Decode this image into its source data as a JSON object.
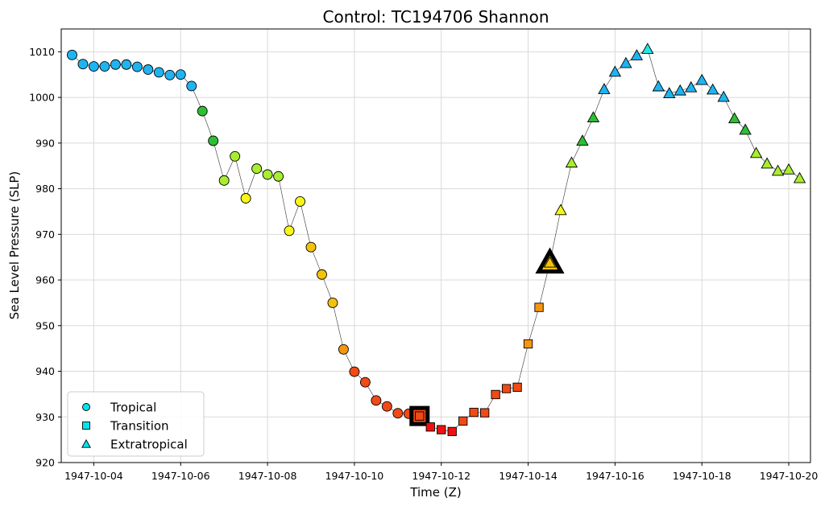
{
  "chart_data": {
    "type": "scatter",
    "title": "Control: TC194706 Shannon",
    "xlabel": "Time (Z)",
    "ylabel": "Sea Level Pressure (SLP)",
    "x_ticks": [
      "1947-10-04",
      "1947-10-06",
      "1947-10-08",
      "1947-10-10",
      "1947-10-12",
      "1947-10-14",
      "1947-10-16",
      "1947-10-18",
      "1947-10-20"
    ],
    "y_ticks": [
      920,
      930,
      940,
      950,
      960,
      970,
      980,
      990,
      1000,
      1010
    ],
    "xlim": [
      "1947-10-03 06:00",
      "1947-10-20 12:00"
    ],
    "ylim": [
      920,
      1015
    ],
    "grid": true,
    "legend_position": "lower-left",
    "legend": [
      {
        "label": "Tropical",
        "marker": "circle",
        "color": "#00e5ee"
      },
      {
        "label": "Transition",
        "marker": "square",
        "color": "#00e5ee"
      },
      {
        "label": "Extratropical",
        "marker": "triangle",
        "color": "#00e5ee"
      }
    ],
    "colors": {
      "TD": "#1fb4f0",
      "TS_low": "#2dbf33",
      "TS_mid": "#a8ee2e",
      "cat1": "#f7f716",
      "cat2": "#f2c30d",
      "cat3": "#f5960f",
      "cat4": "#f04a16",
      "cat5": "#f01010",
      "weak_ext": "#22e6e6"
    },
    "series": [
      {
        "x": "1947-10-03 12:00",
        "y": 1009.3,
        "phase": "tropical",
        "color": "#1fb4f0"
      },
      {
        "x": "1947-10-03 18:00",
        "y": 1007.3,
        "phase": "tropical",
        "color": "#1fb4f0"
      },
      {
        "x": "1947-10-04 00:00",
        "y": 1006.8,
        "phase": "tropical",
        "color": "#1fb4f0"
      },
      {
        "x": "1947-10-04 06:00",
        "y": 1006.8,
        "phase": "tropical",
        "color": "#1fb4f0"
      },
      {
        "x": "1947-10-04 12:00",
        "y": 1007.2,
        "phase": "tropical",
        "color": "#1fb4f0"
      },
      {
        "x": "1947-10-04 18:00",
        "y": 1007.2,
        "phase": "tropical",
        "color": "#1fb4f0"
      },
      {
        "x": "1947-10-05 00:00",
        "y": 1006.7,
        "phase": "tropical",
        "color": "#1fb4f0"
      },
      {
        "x": "1947-10-05 06:00",
        "y": 1006.1,
        "phase": "tropical",
        "color": "#1fb4f0"
      },
      {
        "x": "1947-10-05 12:00",
        "y": 1005.5,
        "phase": "tropical",
        "color": "#1fb4f0"
      },
      {
        "x": "1947-10-05 18:00",
        "y": 1004.9,
        "phase": "tropical",
        "color": "#1fb4f0"
      },
      {
        "x": "1947-10-06 00:00",
        "y": 1005.0,
        "phase": "tropical",
        "color": "#1fb4f0"
      },
      {
        "x": "1947-10-06 06:00",
        "y": 1002.5,
        "phase": "tropical",
        "color": "#1fb4f0"
      },
      {
        "x": "1947-10-06 12:00",
        "y": 997.0,
        "phase": "tropical",
        "color": "#2dbf33"
      },
      {
        "x": "1947-10-06 18:00",
        "y": 990.5,
        "phase": "tropical",
        "color": "#2dbf33"
      },
      {
        "x": "1947-10-07 00:00",
        "y": 981.8,
        "phase": "tropical",
        "color": "#a8ee2e"
      },
      {
        "x": "1947-10-07 06:00",
        "y": 987.1,
        "phase": "tropical",
        "color": "#a8ee2e"
      },
      {
        "x": "1947-10-07 12:00",
        "y": 977.9,
        "phase": "tropical",
        "color": "#f7f716"
      },
      {
        "x": "1947-10-07 18:00",
        "y": 984.4,
        "phase": "tropical",
        "color": "#a8ee2e"
      },
      {
        "x": "1947-10-08 00:00",
        "y": 983.1,
        "phase": "tropical",
        "color": "#a8ee2e"
      },
      {
        "x": "1947-10-08 06:00",
        "y": 982.7,
        "phase": "tropical",
        "color": "#a8ee2e"
      },
      {
        "x": "1947-10-08 12:00",
        "y": 970.8,
        "phase": "tropical",
        "color": "#f7f716"
      },
      {
        "x": "1947-10-08 18:00",
        "y": 977.2,
        "phase": "tropical",
        "color": "#f7f716"
      },
      {
        "x": "1947-10-09 00:00",
        "y": 967.2,
        "phase": "tropical",
        "color": "#f2c30d"
      },
      {
        "x": "1947-10-09 06:00",
        "y": 961.2,
        "phase": "tropical",
        "color": "#f2c30d"
      },
      {
        "x": "1947-10-09 12:00",
        "y": 955.0,
        "phase": "tropical",
        "color": "#f2c30d"
      },
      {
        "x": "1947-10-09 18:00",
        "y": 944.8,
        "phase": "tropical",
        "color": "#f5960f"
      },
      {
        "x": "1947-10-10 00:00",
        "y": 939.9,
        "phase": "tropical",
        "color": "#f04a16"
      },
      {
        "x": "1947-10-10 06:00",
        "y": 937.6,
        "phase": "tropical",
        "color": "#f04a16"
      },
      {
        "x": "1947-10-10 12:00",
        "y": 933.6,
        "phase": "tropical",
        "color": "#f04a16"
      },
      {
        "x": "1947-10-10 18:00",
        "y": 932.3,
        "phase": "tropical",
        "color": "#f04a16"
      },
      {
        "x": "1947-10-11 00:00",
        "y": 930.8,
        "phase": "tropical",
        "color": "#f04a16"
      },
      {
        "x": "1947-10-11 06:00",
        "y": 930.7,
        "phase": "tropical",
        "color": "#f04a16"
      },
      {
        "x": "1947-10-11 12:00",
        "y": 930.2,
        "phase": "transition",
        "color": "#f04a16",
        "highlight": true
      },
      {
        "x": "1947-10-11 18:00",
        "y": 927.8,
        "phase": "transition",
        "color": "#f01010"
      },
      {
        "x": "1947-10-12 00:00",
        "y": 927.2,
        "phase": "transition",
        "color": "#f01010"
      },
      {
        "x": "1947-10-12 06:00",
        "y": 926.8,
        "phase": "transition",
        "color": "#f01010"
      },
      {
        "x": "1947-10-12 12:00",
        "y": 929.1,
        "phase": "transition",
        "color": "#f04a16"
      },
      {
        "x": "1947-10-12 18:00",
        "y": 931.0,
        "phase": "transition",
        "color": "#f04a16"
      },
      {
        "x": "1947-10-13 00:00",
        "y": 930.9,
        "phase": "transition",
        "color": "#f04a16"
      },
      {
        "x": "1947-10-13 06:00",
        "y": 934.9,
        "phase": "transition",
        "color": "#f04a16"
      },
      {
        "x": "1947-10-13 12:00",
        "y": 936.2,
        "phase": "transition",
        "color": "#f04a16"
      },
      {
        "x": "1947-10-13 18:00",
        "y": 936.5,
        "phase": "transition",
        "color": "#f04a16"
      },
      {
        "x": "1947-10-14 00:00",
        "y": 946.0,
        "phase": "transition",
        "color": "#f5960f"
      },
      {
        "x": "1947-10-14 06:00",
        "y": 954.0,
        "phase": "transition",
        "color": "#f5960f"
      },
      {
        "x": "1947-10-14 12:00",
        "y": 963.8,
        "phase": "extratropical",
        "color": "#f2c30d",
        "highlight": true
      },
      {
        "x": "1947-10-14 18:00",
        "y": 975.3,
        "phase": "extratropical",
        "color": "#f7f716"
      },
      {
        "x": "1947-10-15 00:00",
        "y": 985.7,
        "phase": "extratropical",
        "color": "#a8ee2e"
      },
      {
        "x": "1947-10-15 06:00",
        "y": 990.5,
        "phase": "extratropical",
        "color": "#2dbf33"
      },
      {
        "x": "1947-10-15 12:00",
        "y": 995.6,
        "phase": "extratropical",
        "color": "#2dbf33"
      },
      {
        "x": "1947-10-15 18:00",
        "y": 1001.8,
        "phase": "extratropical",
        "color": "#1fb4f0"
      },
      {
        "x": "1947-10-16 00:00",
        "y": 1005.6,
        "phase": "extratropical",
        "color": "#1fb4f0"
      },
      {
        "x": "1947-10-16 06:00",
        "y": 1007.5,
        "phase": "extratropical",
        "color": "#1fb4f0"
      },
      {
        "x": "1947-10-16 12:00",
        "y": 1009.2,
        "phase": "extratropical",
        "color": "#1fb4f0"
      },
      {
        "x": "1947-10-16 18:00",
        "y": 1010.6,
        "phase": "extratropical",
        "color": "#22e6e6"
      },
      {
        "x": "1947-10-17 00:00",
        "y": 1002.4,
        "phase": "extratropical",
        "color": "#1fb4f0"
      },
      {
        "x": "1947-10-17 06:00",
        "y": 1000.9,
        "phase": "extratropical",
        "color": "#1fb4f0"
      },
      {
        "x": "1947-10-17 12:00",
        "y": 1001.5,
        "phase": "extratropical",
        "color": "#1fb4f0"
      },
      {
        "x": "1947-10-17 18:00",
        "y": 1002.2,
        "phase": "extratropical",
        "color": "#1fb4f0"
      },
      {
        "x": "1947-10-18 00:00",
        "y": 1003.8,
        "phase": "extratropical",
        "color": "#1fb4f0"
      },
      {
        "x": "1947-10-18 06:00",
        "y": 1001.7,
        "phase": "extratropical",
        "color": "#1fb4f0"
      },
      {
        "x": "1947-10-18 12:00",
        "y": 1000.1,
        "phase": "extratropical",
        "color": "#1fb4f0"
      },
      {
        "x": "1947-10-18 18:00",
        "y": 995.4,
        "phase": "extratropical",
        "color": "#2dbf33"
      },
      {
        "x": "1947-10-19 00:00",
        "y": 992.9,
        "phase": "extratropical",
        "color": "#2dbf33"
      },
      {
        "x": "1947-10-19 06:00",
        "y": 987.8,
        "phase": "extratropical",
        "color": "#a8ee2e"
      },
      {
        "x": "1947-10-19 12:00",
        "y": 985.5,
        "phase": "extratropical",
        "color": "#a8ee2e"
      },
      {
        "x": "1947-10-19 18:00",
        "y": 983.9,
        "phase": "extratropical",
        "color": "#a8ee2e"
      },
      {
        "x": "1947-10-20 00:00",
        "y": 984.2,
        "phase": "extratropical",
        "color": "#a8ee2e"
      },
      {
        "x": "1947-10-20 06:00",
        "y": 982.3,
        "phase": "extratropical",
        "color": "#a8ee2e"
      }
    ]
  }
}
